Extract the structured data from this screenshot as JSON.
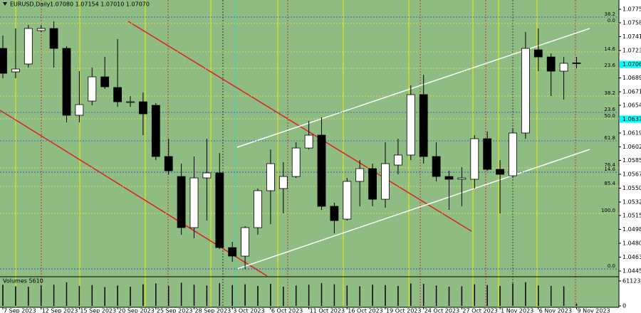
{
  "chart_data": [
    {
      "type": "candlestick",
      "title": "EURUSD,Daily",
      "subtitle": "1.07080 1.07154 1.07010 1.07070",
      "categories": [
        "7 Sep 2023",
        null,
        null,
        "12 Sep 2023",
        null,
        null,
        "15 Sep 2023",
        null,
        null,
        "20 Sep 2023",
        null,
        null,
        "25 Sep 2023",
        null,
        null,
        "28 Sep 2023",
        null,
        null,
        "3 Oct 2023",
        null,
        null,
        "6 Oct 2023",
        null,
        null,
        "11 Oct 2023",
        null,
        null,
        "16 Oct 2023",
        null,
        null,
        "19 Oct 2023",
        null,
        null,
        "24 Oct 2023",
        null,
        null,
        "27 Oct 2023",
        null,
        null,
        "1 Nov 2023",
        null,
        null,
        "6 Nov 2023",
        null,
        null,
        "9 Nov 2023"
      ],
      "open": [
        1.07262,
        1.06966,
        1.07065,
        1.07486,
        1.07513,
        1.07262,
        1.06419,
        1.06598,
        1.06903,
        1.06769,
        1.06589,
        1.06589,
        1.06544,
        1.05899,
        1.05647,
        1.05002,
        1.05629,
        1.05692,
        1.0475,
        1.04643,
        1.05002,
        1.05468,
        1.05495,
        1.05647,
        1.06006,
        1.06168,
        1.05271,
        1.05109,
        1.05585,
        1.05746,
        1.0536,
        1.05791,
        1.05917,
        1.06679,
        1.05899,
        1.05647,
        1.05612,
        1.05612,
        1.06123,
        1.05737,
        1.05656,
        1.06195,
        1.07244,
        1.07154,
        1.06975,
        1.0708
      ],
      "high": [
        1.07423,
        1.07513,
        1.07558,
        1.07558,
        1.07603,
        1.07289,
        1.06975,
        1.0702,
        1.07154,
        1.07379,
        1.06661,
        1.06706,
        1.06571,
        1.06123,
        1.05809,
        1.05899,
        1.06123,
        1.05943,
        1.04822,
        1.0502,
        1.05495,
        1.05988,
        1.05827,
        1.06078,
        1.06347,
        1.06392,
        1.05316,
        1.05629,
        1.05854,
        1.05809,
        1.06078,
        1.06123,
        1.06796,
        1.0693,
        1.06078,
        1.05719,
        1.05764,
        1.06168,
        1.06213,
        1.05854,
        1.06257,
        1.07468,
        1.07513,
        1.07199,
        1.07154,
        1.07154
      ],
      "low": [
        1.06885,
        1.06885,
        1.0702,
        1.07468,
        1.0702,
        1.06329,
        1.06329,
        1.06544,
        1.06751,
        1.06526,
        1.06526,
        1.06168,
        1.05854,
        1.05674,
        1.04912,
        1.04867,
        1.05091,
        1.04732,
        1.04571,
        1.04481,
        1.04912,
        1.05046,
        1.05181,
        1.05629,
        1.05988,
        1.05226,
        1.0493,
        1.05091,
        1.05271,
        1.05271,
        1.05253,
        1.05674,
        1.05854,
        1.05809,
        1.05585,
        1.05226,
        1.05271,
        1.05495,
        1.05719,
        1.05181,
        1.05629,
        1.06123,
        1.06975,
        1.06661,
        1.06616,
        1.0701
      ],
      "close": [
        1.06948,
        1.07002,
        1.07513,
        1.07513,
        1.07262,
        1.06419,
        1.06553,
        1.06903,
        1.06778,
        1.06589,
        1.06589,
        1.06437,
        1.05899,
        1.05719,
        1.05002,
        1.05629,
        1.05692,
        1.0475,
        1.04643,
        1.05002,
        1.05468,
        1.05809,
        1.05647,
        1.06006,
        1.06168,
        1.05271,
        1.05091,
        1.05585,
        1.05746,
        1.0536,
        1.05809,
        1.05917,
        1.06679,
        1.05899,
        1.05647,
        1.05612,
        1.05629,
        1.06123,
        1.05737,
        1.05674,
        1.06195,
        1.07262,
        1.07154,
        1.06975,
        1.07074,
        1.0707
      ],
      "up_color": "#ffffff",
      "down_color": "#000000",
      "background": "#8fbc82",
      "ylim": [
        1.04392,
        1.07872
      ],
      "yticks": [
        1.07755,
        1.07585,
        {
          "value": 1.0741,
          "label": "1.07410"
        },
        1.07235,
        {
          "value": 1.0689,
          "label": "1.06890"
        },
        1.06715,
        1.06545,
        1.06195,
        {
          "value": 1.0602,
          "label": "1.06020"
        },
        {
          "value": 1.0585,
          "label": "1.05850"
        },
        1.05675,
        {
          "value": 1.055,
          "label": "1.05500"
        },
        1.05325,
        1.05155,
        {
          "value": 1.0498,
          "label": "1.04980"
        },
        1.04805,
        {
          "value": 1.0463,
          "label": "1.04630"
        },
        1.04455
      ],
      "highlight_ticks": [
        {
          "value": 1.0706,
          "label": "1.07060"
        },
        {
          "value": 1.0637,
          "label": "1.06370"
        }
      ],
      "highlight_color": "#00ffff",
      "levels": [
        {
          "label": "38.2",
          "value": 1.07657,
          "color": "#2a45d8"
        },
        {
          "label": "23.6",
          "value": 1.06455,
          "color": "#2a45d8"
        },
        {
          "label": "61.8",
          "value": 1.06096,
          "color": "#2a45d8"
        },
        {
          "label": "14.6",
          "value": 1.05701,
          "color": "#2a45d8"
        },
        {
          "label": "0.0",
          "value": 1.04481,
          "color": "#2a45d8"
        },
        {
          "label": "0.0",
          "value": 1.07576,
          "color": "#e8e85a"
        },
        {
          "label": "14.6",
          "value": 1.07217,
          "color": "#e8e85a"
        },
        {
          "label": "23.6",
          "value": 1.07011,
          "color": "#e8e85a"
        },
        {
          "label": "38.2",
          "value": 1.06661,
          "color": "#e8e85a"
        },
        {
          "label": "50.0",
          "value": 1.06374,
          "color": "#e8e85a"
        },
        {
          "label": "76.4",
          "value": 1.05755,
          "color": "#e8e85a"
        },
        {
          "label": "85.4",
          "value": 1.05522,
          "color": "#e8e85a"
        },
        {
          "label": "100.0",
          "value": 1.05181,
          "color": "#e8e85a"
        }
      ]
    },
    {
      "type": "bar",
      "title": "Volumes 5610",
      "color": "#000000",
      "values": [
        52000,
        48000,
        47000,
        50000,
        52000,
        58000,
        49000,
        51000,
        46000,
        50000,
        47000,
        53000,
        55000,
        49000,
        57000,
        52000,
        50000,
        56000,
        51000,
        53000,
        49000,
        54000,
        47000,
        50000,
        52000,
        56000,
        53000,
        50000,
        48000,
        52000,
        51000,
        49000,
        55000,
        54000,
        50000,
        47000,
        48000,
        53000,
        51000,
        49000,
        55000,
        58000,
        50000,
        49000,
        48000,
        5610
      ],
      "ylim": [
        0,
        66360
      ],
      "yticks": [
        61123,
        0
      ]
    }
  ]
}
